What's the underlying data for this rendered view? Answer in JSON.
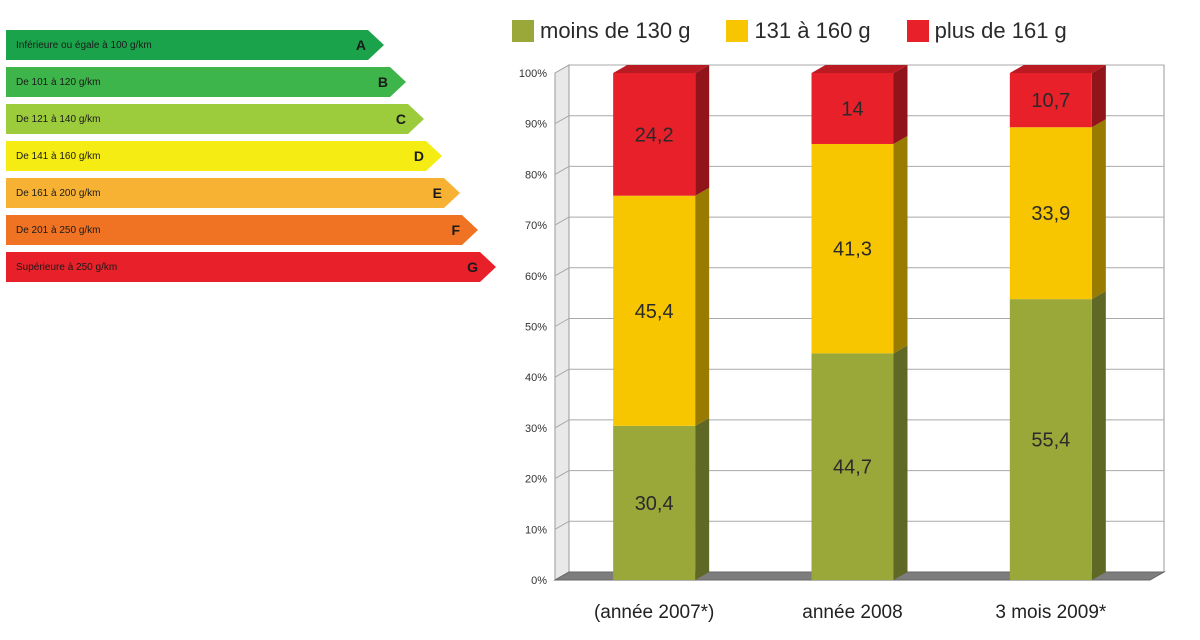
{
  "energy_labels": [
    {
      "text": "Inférieure ou égale à 100 g/km",
      "letter": "A",
      "color": "#1aa34a"
    },
    {
      "text": "De 101 à 120 g/km",
      "letter": "B",
      "color": "#3db54a"
    },
    {
      "text": "De 121 à 140 g/km",
      "letter": "C",
      "color": "#9ccb3b"
    },
    {
      "text": "De 141 à 160 g/km",
      "letter": "D",
      "color": "#f5ec13"
    },
    {
      "text": "De 161 à 200 g/km",
      "letter": "E",
      "color": "#f8b233"
    },
    {
      "text": "De 201 à 250 g/km",
      "letter": "F",
      "color": "#ef7323"
    },
    {
      "text": "Supérieure à 250 g/km",
      "letter": "G",
      "color": "#e7202a"
    }
  ],
  "chart_data": {
    "type": "bar",
    "stacked": true,
    "categories": [
      "(année 2007*)",
      "année 2008",
      "3 mois 2009*"
    ],
    "series": [
      {
        "name": "moins de 130 g",
        "color": "#9aa83a",
        "values": [
          30.4,
          44.7,
          55.4
        ]
      },
      {
        "name": "131 à 160 g",
        "color": "#f7c600",
        "values": [
          45.4,
          41.3,
          33.9
        ]
      },
      {
        "name": "plus de 161 g",
        "color": "#e8202a",
        "values": [
          24.2,
          14,
          10.7
        ]
      }
    ],
    "value_labels": [
      [
        "30,4",
        "44,7",
        "55,4"
      ],
      [
        "45,4",
        "41,3",
        "33,9"
      ],
      [
        "24,2",
        "14",
        "10,7"
      ]
    ],
    "yticks": [
      "0%",
      "10%",
      "20%",
      "30%",
      "40%",
      "50%",
      "60%",
      "70%",
      "80%",
      "90%",
      "100%"
    ],
    "ylim": [
      0,
      100
    ],
    "grid": true,
    "legend_position": "top"
  }
}
